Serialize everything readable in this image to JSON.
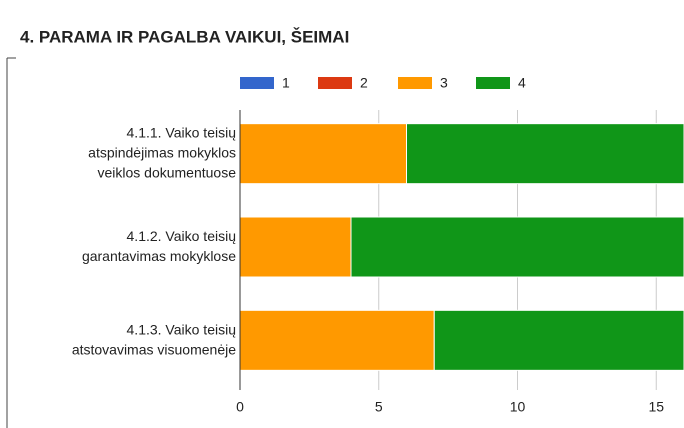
{
  "chart_data": {
    "type": "stacked_barh",
    "title": "4. PARAMA IR PAGALBA VAIKUI, ŠEIMAI",
    "categories": [
      "4.1.1. Vaiko teisių\natspindėjimas mokyklos\nveiklos dokumentuose",
      "4.1.2. Vaiko teisių\ngarantavimas mokyklose",
      "4.1.3. Vaiko teisių\natstovavimas visuomenėje"
    ],
    "series": [
      {
        "name": "1",
        "color": "#3366cc",
        "values": [
          0,
          0,
          0
        ]
      },
      {
        "name": "2",
        "color": "#dc3912",
        "values": [
          0,
          0,
          0
        ]
      },
      {
        "name": "3",
        "color": "#ff9900",
        "values": [
          6,
          4,
          7
        ]
      },
      {
        "name": "4",
        "color": "#109618",
        "values": [
          10,
          12,
          9
        ]
      }
    ],
    "xlim": [
      0,
      16
    ],
    "xticks": [
      0,
      5,
      10,
      15
    ],
    "grid": true,
    "legend": "top"
  }
}
